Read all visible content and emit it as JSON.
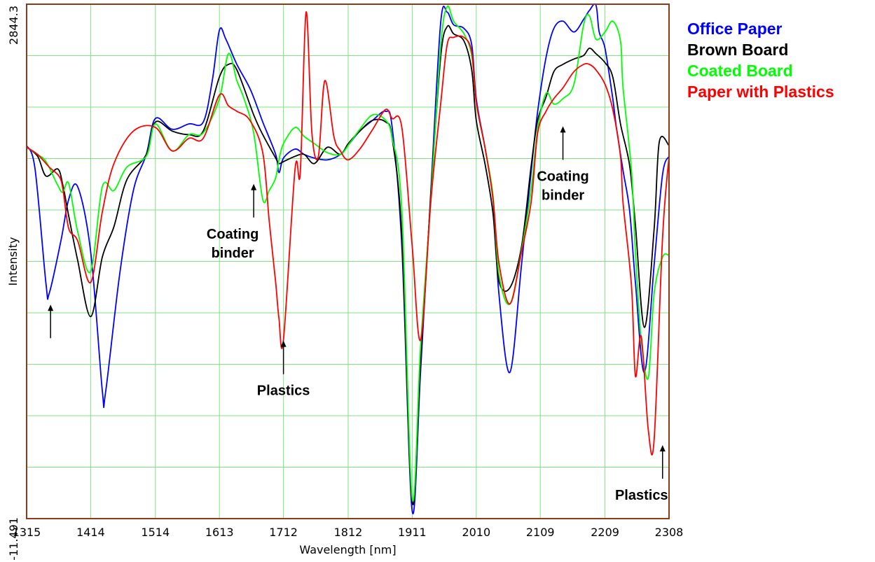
{
  "chart_data": {
    "type": "line",
    "xlabel": "Wavelength [nm]",
    "ylabel": "Intensity",
    "xlim": [
      1315,
      2308
    ],
    "ylim": [
      -11.491,
      2844.3
    ],
    "x_ticks": [
      "1315",
      "1414",
      "1514",
      "1613",
      "1712",
      "1812",
      "1911",
      "2010",
      "2109",
      "2209",
      "2308"
    ],
    "y_ticks": [
      "-11.491",
      "2844.3"
    ],
    "grid": true,
    "legend_position": "top-right, outside",
    "series": [
      {
        "name": "Office Paper",
        "color": "#0000ff",
        "x": [
          1315,
          1328,
          1345,
          1350,
          1368,
          1380,
          1394,
          1414,
          1432,
          1437,
          1459,
          1480,
          1500,
          1514,
          1540,
          1566,
          1588,
          1602,
          1613,
          1623,
          1640,
          1661,
          1680,
          1700,
          1705,
          1712,
          1730,
          1744,
          1760,
          1780,
          1800,
          1814,
          1830,
          1850,
          1870,
          1880,
          1895,
          1911,
          1924,
          1940,
          1955,
          1965,
          1975,
          1991,
          2003,
          2010,
          2024,
          2036,
          2045,
          2062,
          2080,
          2095,
          2105,
          2118,
          2130,
          2144,
          2161,
          2176,
          2185,
          2195,
          2200,
          2209,
          2221,
          2227,
          2237,
          2247,
          2256,
          2270,
          2285,
          2298,
          2308
        ],
        "y": [
          2060,
          1930,
          1290,
          1240,
          1530,
          1760,
          1830,
          1470,
          700,
          690,
          1350,
          1810,
          2010,
          2210,
          2150,
          2180,
          2190,
          2420,
          2700,
          2650,
          2510,
          2370,
          2190,
          2010,
          1910,
          1990,
          2040,
          2010,
          1990,
          1980,
          2010,
          2070,
          2140,
          2200,
          2250,
          2160,
          1500,
          30,
          810,
          1820,
          2740,
          2800,
          2730,
          2710,
          2620,
          2320,
          2040,
          1760,
          1240,
          800,
          1400,
          1920,
          2250,
          2550,
          2710,
          2750,
          2690,
          2760,
          2810,
          2840,
          2690,
          2600,
          2320,
          2150,
          1920,
          1700,
          1300,
          800,
          1400,
          1900,
          2000
        ]
      },
      {
        "name": "Brown Board",
        "color": "#000000",
        "x": [
          1315,
          1332,
          1345,
          1363,
          1371,
          1380,
          1394,
          1414,
          1432,
          1450,
          1470,
          1500,
          1514,
          1540,
          1566,
          1588,
          1613,
          1627,
          1640,
          1666,
          1680,
          1700,
          1705,
          1712,
          1730,
          1744,
          1760,
          1780,
          1800,
          1812,
          1830,
          1850,
          1870,
          1880,
          1895,
          1911,
          1924,
          1940,
          1955,
          1965,
          1975,
          1991,
          2003,
          2010,
          2024,
          2036,
          2045,
          2062,
          2080,
          2095,
          2105,
          2118,
          2130,
          2144,
          2161,
          2176,
          2185,
          2195,
          2209,
          2221,
          2233,
          2247,
          2256,
          2270,
          2285,
          2293,
          2308
        ],
        "y": [
          2050,
          2000,
          1890,
          1930,
          1840,
          1670,
          1420,
          1110,
          1440,
          1610,
          1870,
          2010,
          2190,
          2140,
          2120,
          2140,
          2440,
          2510,
          2480,
          2230,
          2120,
          1990,
          1960,
          1970,
          2000,
          2010,
          1960,
          2050,
          2010,
          2070,
          2140,
          2200,
          2190,
          2100,
          1560,
          80,
          870,
          1800,
          2550,
          2720,
          2680,
          2640,
          2480,
          2200,
          1950,
          1680,
          1310,
          1270,
          1500,
          1950,
          2200,
          2330,
          2470,
          2510,
          2540,
          2560,
          2600,
          2570,
          2520,
          2440,
          2180,
          1950,
          1620,
          1050,
          1600,
          2080,
          2060
        ]
      },
      {
        "name": "Coated Board",
        "color": "#00ff00",
        "x": [
          1315,
          1332,
          1345,
          1363,
          1371,
          1380,
          1394,
          1414,
          1432,
          1450,
          1470,
          1500,
          1514,
          1540,
          1566,
          1588,
          1613,
          1627,
          1640,
          1651,
          1666,
          1680,
          1690,
          1700,
          1705,
          1712,
          1730,
          1744,
          1760,
          1780,
          1800,
          1814,
          1830,
          1850,
          1870,
          1880,
          1895,
          1911,
          1924,
          1940,
          1955,
          1965,
          1975,
          1991,
          2003,
          2010,
          2024,
          2036,
          2045,
          2062,
          2080,
          2095,
          2105,
          2118,
          2130,
          2144,
          2161,
          2176,
          2185,
          2195,
          2209,
          2221,
          2233,
          2237,
          2250,
          2256,
          2265,
          2276,
          2285,
          2298,
          2308
        ],
        "y": [
          2050,
          2010,
          1970,
          1840,
          1800,
          1850,
          1580,
          1360,
          1830,
          1810,
          1940,
          2000,
          2180,
          2030,
          2120,
          2130,
          2320,
          2570,
          2420,
          2320,
          2130,
          1760,
          1810,
          1880,
          1980,
          2070,
          2160,
          2110,
          2070,
          2020,
          2010,
          2070,
          2150,
          2230,
          2200,
          2100,
          1700,
          100,
          950,
          1770,
          2610,
          2830,
          2750,
          2680,
          2560,
          2300,
          2040,
          1780,
          1350,
          1180,
          1480,
          1820,
          2150,
          2350,
          2290,
          2320,
          2400,
          2730,
          2780,
          2650,
          2690,
          2750,
          2640,
          2380,
          1920,
          1470,
          980,
          770,
          1240,
          1440,
          1450
        ]
      },
      {
        "name": "Paper with Plastics",
        "color": "#ff0000",
        "x": [
          1315,
          1332,
          1350,
          1365,
          1371,
          1380,
          1394,
          1414,
          1432,
          1450,
          1480,
          1514,
          1540,
          1566,
          1588,
          1613,
          1627,
          1640,
          1660,
          1680,
          1690,
          1700,
          1705,
          1712,
          1730,
          1738,
          1747,
          1756,
          1766,
          1776,
          1790,
          1800,
          1812,
          1830,
          1850,
          1870,
          1880,
          1895,
          1911,
          1924,
          1940,
          1955,
          1965,
          1975,
          1991,
          2003,
          2010,
          2024,
          2036,
          2045,
          2062,
          2080,
          2095,
          2105,
          2118,
          2130,
          2144,
          2161,
          2176,
          2185,
          2195,
          2209,
          2221,
          2233,
          2237,
          2250,
          2256,
          2265,
          2276,
          2285,
          2298,
          2308
        ],
        "y": [
          2050,
          2010,
          1940,
          1890,
          1820,
          1600,
          1530,
          1300,
          1690,
          1960,
          2140,
          2160,
          2030,
          2100,
          2100,
          2340,
          2280,
          2250,
          2200,
          2020,
          1640,
          1300,
          1100,
          980,
          1930,
          1910,
          2800,
          2130,
          2000,
          2420,
          2110,
          2030,
          1980,
          2040,
          2150,
          2260,
          2210,
          2160,
          1500,
          980,
          1760,
          2290,
          2620,
          2660,
          2660,
          2580,
          2300,
          2040,
          1760,
          1410,
          1180,
          1470,
          1750,
          2130,
          2250,
          2320,
          2380,
          2470,
          2510,
          2510,
          2480,
          2400,
          2260,
          2000,
          1740,
          1280,
          780,
          1000,
          480,
          430,
          1550,
          2000
        ]
      }
    ],
    "annotations": [
      {
        "lines": [
          "Coating",
          "binder"
        ],
        "arrow": "up",
        "anchor": {
          "x": 1666,
          "y": 1870
        },
        "label_pos": "below-left"
      },
      {
        "lines": [
          "Plastics"
        ],
        "arrow": "up",
        "anchor": {
          "x": 1712,
          "y": 1000
        },
        "label_pos": "below"
      },
      {
        "lines": [
          "Coating",
          "binder"
        ],
        "arrow": "up",
        "anchor": {
          "x": 2144,
          "y": 2190
        },
        "label_pos": "below"
      },
      {
        "lines": [
          "Plastics"
        ],
        "arrow": "up",
        "anchor": {
          "x": 2298,
          "y": 420
        },
        "label_pos": "below-left"
      },
      {
        "lines": [],
        "arrow": "up",
        "anchor": {
          "x": 1352,
          "y": 1200
        },
        "label_pos": "none"
      }
    ]
  }
}
